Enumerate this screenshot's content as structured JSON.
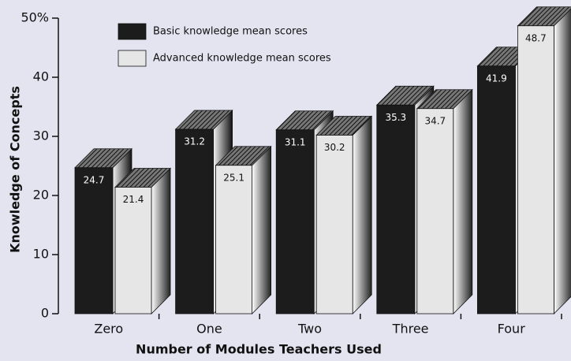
{
  "chart_data": {
    "type": "bar3d",
    "categories": [
      "Zero",
      "One",
      "Two",
      "Three",
      "Four"
    ],
    "series": [
      {
        "name": "Basic knowledge mean scores",
        "color": "#1c1c1c",
        "values": [
          24.7,
          31.2,
          31.1,
          35.3,
          41.9
        ]
      },
      {
        "name": "Advanced knowledge mean scores",
        "color": "#e6e6e6",
        "values": [
          21.4,
          25.1,
          30.2,
          34.7,
          48.7
        ]
      }
    ],
    "ylim": [
      0,
      50
    ],
    "yticks": [
      0,
      10,
      20,
      30,
      40,
      {
        "value": 50,
        "label": "50%"
      }
    ],
    "xlabel": "Number of Modules Teachers Used",
    "ylabel": "Knowledge of Concepts",
    "legend": "top-left"
  }
}
